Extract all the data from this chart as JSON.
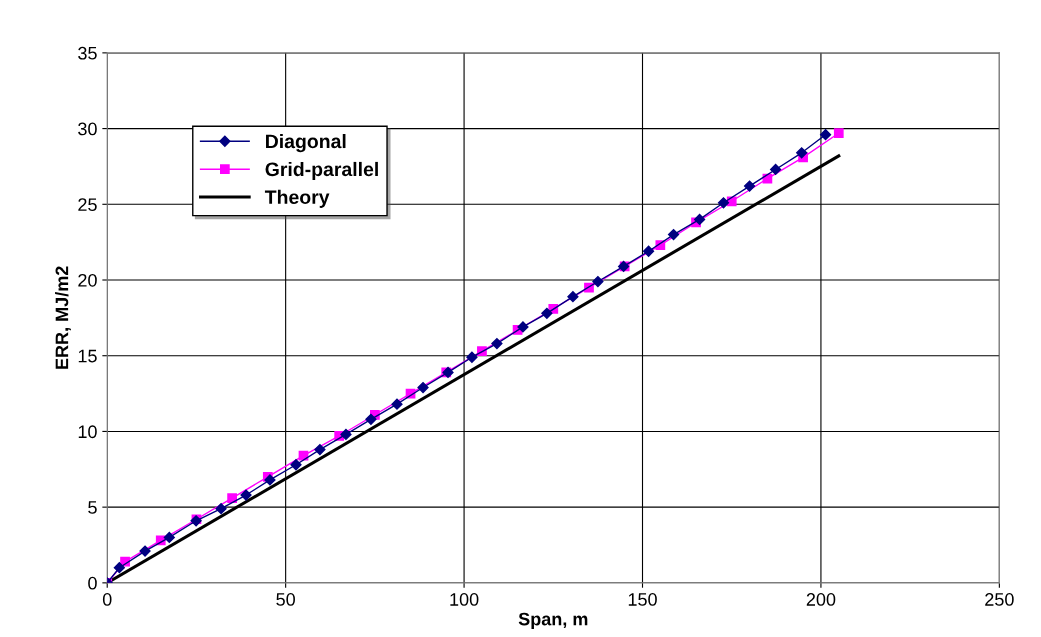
{
  "chart_data": {
    "type": "line",
    "xlabel": "Span, m",
    "ylabel": "ERR, MJ/m2",
    "xlim": [
      0,
      250
    ],
    "xticks": [
      0,
      50,
      100,
      150,
      200,
      250
    ],
    "ylim": [
      0,
      35
    ],
    "yticks": [
      0,
      5,
      10,
      15,
      20,
      25,
      30,
      35
    ],
    "grid": true,
    "legend": "top left",
    "series": [
      {
        "name": "Diagonal",
        "color": "#000080",
        "marker": "diamond",
        "x": [
          0,
          3.4,
          10.6,
          17.4,
          24.9,
          31.9,
          38.9,
          45.6,
          52.9,
          59.6,
          66.9,
          73.9,
          81.2,
          88.5,
          95.5,
          102.2,
          109.2,
          116.5,
          123.2,
          130.5,
          137.5,
          144.7,
          151.7,
          158.7,
          166.0,
          172.7,
          180.0,
          187.3,
          194.6,
          201.3
        ],
        "values": [
          0,
          1.0,
          2.1,
          3.0,
          4.1,
          4.9,
          5.8,
          6.8,
          7.8,
          8.8,
          9.8,
          10.8,
          11.8,
          12.9,
          13.9,
          14.9,
          15.8,
          16.9,
          17.8,
          18.9,
          19.9,
          20.9,
          21.9,
          23.0,
          24.0,
          25.1,
          26.2,
          27.3,
          28.4,
          29.6
        ]
      },
      {
        "name": "Grid-parallel",
        "color": "#ff00ff",
        "marker": "square",
        "x": [
          0,
          5,
          15,
          25,
          35,
          45,
          55,
          65,
          75,
          85,
          95,
          105,
          115,
          125,
          135,
          145,
          155,
          165,
          175,
          185,
          195,
          205
        ],
        "values": [
          0,
          1.4,
          2.8,
          4.2,
          5.6,
          7.0,
          8.4,
          9.7,
          11.1,
          12.5,
          13.9,
          15.3,
          16.7,
          18.1,
          19.5,
          20.9,
          22.3,
          23.8,
          25.2,
          26.7,
          28.1,
          29.7
        ]
      },
      {
        "name": "Theory",
        "color": "#000000",
        "marker": "none",
        "x": [
          0,
          205
        ],
        "values": [
          0,
          28.2
        ]
      }
    ]
  }
}
